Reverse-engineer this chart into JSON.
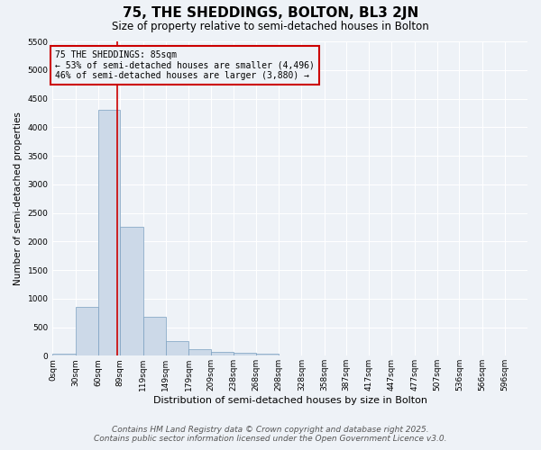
{
  "title": "75, THE SHEDDINGS, BOLTON, BL3 2JN",
  "subtitle": "Size of property relative to semi-detached houses in Bolton",
  "xlabel": "Distribution of semi-detached houses by size in Bolton",
  "ylabel": "Number of semi-detached properties",
  "bar_color": "#ccd9e8",
  "bar_edge_color": "#7aa0c0",
  "bin_labels": [
    "0sqm",
    "30sqm",
    "60sqm",
    "89sqm",
    "119sqm",
    "149sqm",
    "179sqm",
    "209sqm",
    "238sqm",
    "268sqm",
    "298sqm",
    "328sqm",
    "358sqm",
    "387sqm",
    "417sqm",
    "447sqm",
    "477sqm",
    "507sqm",
    "536sqm",
    "566sqm",
    "596sqm"
  ],
  "bin_edges": [
    0,
    30,
    60,
    89,
    119,
    149,
    179,
    209,
    238,
    268,
    298,
    328,
    358,
    387,
    417,
    447,
    477,
    507,
    536,
    566,
    596
  ],
  "bin_widths": [
    30,
    30,
    29,
    30,
    30,
    30,
    30,
    29,
    30,
    30,
    30,
    30,
    29,
    30,
    30,
    30,
    30,
    29,
    30,
    30,
    30
  ],
  "bar_heights": [
    30,
    850,
    4300,
    2250,
    680,
    260,
    120,
    65,
    50,
    30,
    0,
    0,
    0,
    0,
    0,
    0,
    0,
    0,
    0,
    0
  ],
  "ylim": [
    0,
    5500
  ],
  "yticks": [
    0,
    500,
    1000,
    1500,
    2000,
    2500,
    3000,
    3500,
    4000,
    4500,
    5000,
    5500
  ],
  "property_size": 85,
  "red_line_color": "#cc0000",
  "annotation_line1": "75 THE SHEDDINGS: 85sqm",
  "annotation_line2": "← 53% of semi-detached houses are smaller (4,496)",
  "annotation_line3": "46% of semi-detached houses are larger (3,880) →",
  "annotation_box_color": "#cc0000",
  "footer_line1": "Contains HM Land Registry data © Crown copyright and database right 2025.",
  "footer_line2": "Contains public sector information licensed under the Open Government Licence v3.0.",
  "background_color": "#eef2f7",
  "grid_color": "#ffffff",
  "title_fontsize": 11,
  "subtitle_fontsize": 8.5,
  "ylabel_fontsize": 7.5,
  "xlabel_fontsize": 8,
  "annotation_fontsize": 7,
  "footer_fontsize": 6.5,
  "tick_fontsize": 6.5
}
